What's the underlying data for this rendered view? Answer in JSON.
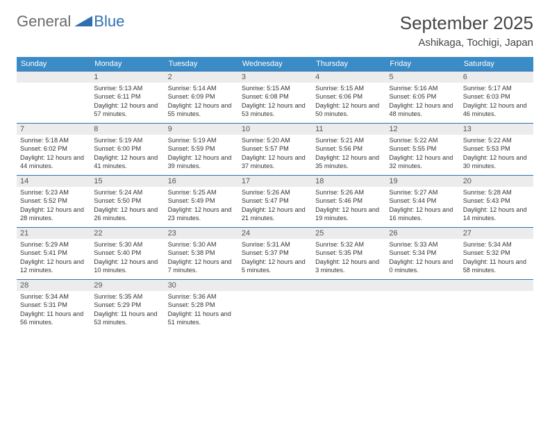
{
  "brand": {
    "part1": "General",
    "part2": "Blue"
  },
  "title": "September 2025",
  "location": "Ashikaga, Tochigi, Japan",
  "colors": {
    "header_bg": "#3b8bc6",
    "rule": "#2f6fb0",
    "daynum_bg": "#ececec",
    "text": "#333333"
  },
  "weekdays": [
    "Sunday",
    "Monday",
    "Tuesday",
    "Wednesday",
    "Thursday",
    "Friday",
    "Saturday"
  ],
  "start_offset": 1,
  "days": [
    {
      "n": 1,
      "sunrise": "5:13 AM",
      "sunset": "6:11 PM",
      "daylight": "12 hours and 57 minutes."
    },
    {
      "n": 2,
      "sunrise": "5:14 AM",
      "sunset": "6:09 PM",
      "daylight": "12 hours and 55 minutes."
    },
    {
      "n": 3,
      "sunrise": "5:15 AM",
      "sunset": "6:08 PM",
      "daylight": "12 hours and 53 minutes."
    },
    {
      "n": 4,
      "sunrise": "5:15 AM",
      "sunset": "6:06 PM",
      "daylight": "12 hours and 50 minutes."
    },
    {
      "n": 5,
      "sunrise": "5:16 AM",
      "sunset": "6:05 PM",
      "daylight": "12 hours and 48 minutes."
    },
    {
      "n": 6,
      "sunrise": "5:17 AM",
      "sunset": "6:03 PM",
      "daylight": "12 hours and 46 minutes."
    },
    {
      "n": 7,
      "sunrise": "5:18 AM",
      "sunset": "6:02 PM",
      "daylight": "12 hours and 44 minutes."
    },
    {
      "n": 8,
      "sunrise": "5:19 AM",
      "sunset": "6:00 PM",
      "daylight": "12 hours and 41 minutes."
    },
    {
      "n": 9,
      "sunrise": "5:19 AM",
      "sunset": "5:59 PM",
      "daylight": "12 hours and 39 minutes."
    },
    {
      "n": 10,
      "sunrise": "5:20 AM",
      "sunset": "5:57 PM",
      "daylight": "12 hours and 37 minutes."
    },
    {
      "n": 11,
      "sunrise": "5:21 AM",
      "sunset": "5:56 PM",
      "daylight": "12 hours and 35 minutes."
    },
    {
      "n": 12,
      "sunrise": "5:22 AM",
      "sunset": "5:55 PM",
      "daylight": "12 hours and 32 minutes."
    },
    {
      "n": 13,
      "sunrise": "5:22 AM",
      "sunset": "5:53 PM",
      "daylight": "12 hours and 30 minutes."
    },
    {
      "n": 14,
      "sunrise": "5:23 AM",
      "sunset": "5:52 PM",
      "daylight": "12 hours and 28 minutes."
    },
    {
      "n": 15,
      "sunrise": "5:24 AM",
      "sunset": "5:50 PM",
      "daylight": "12 hours and 26 minutes."
    },
    {
      "n": 16,
      "sunrise": "5:25 AM",
      "sunset": "5:49 PM",
      "daylight": "12 hours and 23 minutes."
    },
    {
      "n": 17,
      "sunrise": "5:26 AM",
      "sunset": "5:47 PM",
      "daylight": "12 hours and 21 minutes."
    },
    {
      "n": 18,
      "sunrise": "5:26 AM",
      "sunset": "5:46 PM",
      "daylight": "12 hours and 19 minutes."
    },
    {
      "n": 19,
      "sunrise": "5:27 AM",
      "sunset": "5:44 PM",
      "daylight": "12 hours and 16 minutes."
    },
    {
      "n": 20,
      "sunrise": "5:28 AM",
      "sunset": "5:43 PM",
      "daylight": "12 hours and 14 minutes."
    },
    {
      "n": 21,
      "sunrise": "5:29 AM",
      "sunset": "5:41 PM",
      "daylight": "12 hours and 12 minutes."
    },
    {
      "n": 22,
      "sunrise": "5:30 AM",
      "sunset": "5:40 PM",
      "daylight": "12 hours and 10 minutes."
    },
    {
      "n": 23,
      "sunrise": "5:30 AM",
      "sunset": "5:38 PM",
      "daylight": "12 hours and 7 minutes."
    },
    {
      "n": 24,
      "sunrise": "5:31 AM",
      "sunset": "5:37 PM",
      "daylight": "12 hours and 5 minutes."
    },
    {
      "n": 25,
      "sunrise": "5:32 AM",
      "sunset": "5:35 PM",
      "daylight": "12 hours and 3 minutes."
    },
    {
      "n": 26,
      "sunrise": "5:33 AM",
      "sunset": "5:34 PM",
      "daylight": "12 hours and 0 minutes."
    },
    {
      "n": 27,
      "sunrise": "5:34 AM",
      "sunset": "5:32 PM",
      "daylight": "11 hours and 58 minutes."
    },
    {
      "n": 28,
      "sunrise": "5:34 AM",
      "sunset": "5:31 PM",
      "daylight": "11 hours and 56 minutes."
    },
    {
      "n": 29,
      "sunrise": "5:35 AM",
      "sunset": "5:29 PM",
      "daylight": "11 hours and 53 minutes."
    },
    {
      "n": 30,
      "sunrise": "5:36 AM",
      "sunset": "5:28 PM",
      "daylight": "11 hours and 51 minutes."
    }
  ],
  "labels": {
    "sunrise": "Sunrise:",
    "sunset": "Sunset:",
    "daylight": "Daylight:"
  }
}
